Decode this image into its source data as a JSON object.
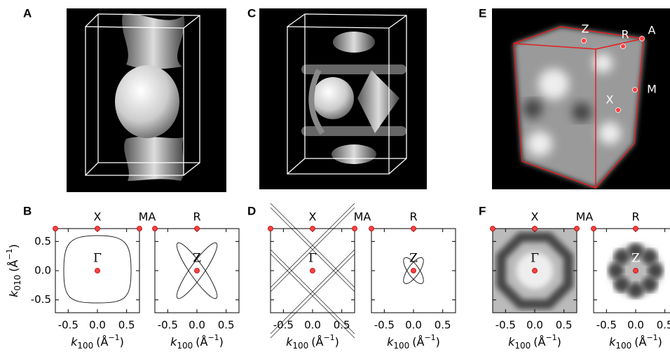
{
  "panel_labels": [
    "A",
    "B",
    "C",
    "D",
    "E",
    "F"
  ],
  "e_points": [
    "Z",
    "R",
    "A",
    "X",
    "M"
  ],
  "axes": {
    "k": "k",
    "x_sub": "100",
    "y_sub": "010",
    "unit_open": "(Å",
    "unit_sup": "−1",
    "unit_close": ")",
    "xlim": [
      -0.72,
      0.72
    ],
    "ylim": [
      -0.72,
      0.72
    ],
    "xticks": [
      -0.5,
      {
        "value": 0,
        "label": "0.0"
      },
      0.5
    ],
    "yticks": [
      0.5,
      {
        "value": 0,
        "label": "0.0"
      },
      -0.5
    ]
  },
  "plots": [
    {
      "style": "gamma-line",
      "top": [
        "X",
        "MA"
      ],
      "center": "Γ"
    },
    {
      "style": "z-line",
      "top": [
        "R"
      ],
      "center": "Z"
    },
    {
      "style": "gamma-grid",
      "top": [
        "X",
        "MA"
      ],
      "center": "Γ"
    },
    {
      "style": "z-small",
      "top": [
        "R"
      ],
      "center": "Z"
    },
    {
      "style": "gamma-blur",
      "top": [
        "X",
        "MA"
      ],
      "center": "Γ"
    },
    {
      "style": "z-blur",
      "top": [
        "R"
      ],
      "center": "Z"
    }
  ]
}
